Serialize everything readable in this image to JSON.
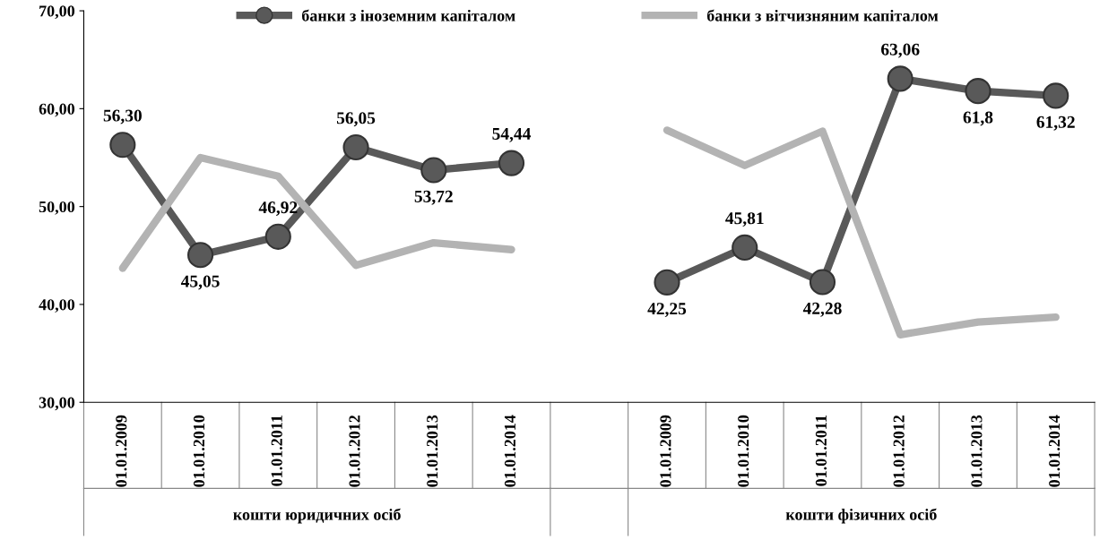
{
  "chart_data": {
    "type": "line",
    "categories": [
      "01.01.2009",
      "01.01.2010",
      "01.01.2011",
      "01.01.2012",
      "01.01.2013",
      "01.01.2014",
      null,
      "01.01.2009",
      "01.01.2010",
      "01.01.2011",
      "01.01.2012",
      "01.01.2013",
      "01.01.2014"
    ],
    "series": [
      {
        "name": "банки з іноземним капіталом",
        "color": "#595959",
        "marker": "circle",
        "values": [
          56.3,
          45.05,
          46.92,
          56.05,
          53.72,
          54.44,
          null,
          42.25,
          45.81,
          42.28,
          63.06,
          61.8,
          61.32
        ],
        "value_labels": [
          "56,30",
          "45,05",
          "46,92",
          "56,05",
          "53,72",
          "54,44",
          null,
          "42,25",
          "45,81",
          "42,28",
          "63,06",
          "61,8",
          "61,32"
        ]
      },
      {
        "name": "банки з вітчизняним капіталом",
        "color": "#b3b3b3",
        "marker": "none",
        "values": [
          43.7,
          55.0,
          53.1,
          44.0,
          46.3,
          45.6,
          null,
          57.8,
          54.2,
          57.7,
          36.9,
          38.2,
          38.7
        ]
      }
    ],
    "ylim": [
      30,
      70
    ],
    "yticks": [
      {
        "value": 30,
        "label": "30,00"
      },
      {
        "value": 40,
        "label": "40,00"
      },
      {
        "value": 50,
        "label": "50,00"
      },
      {
        "value": 60,
        "label": "60,00"
      },
      {
        "value": 70,
        "label": "70,00"
      }
    ],
    "annotations": [
      "кошти юридичних осіб",
      "кошти фізичних осіб"
    ],
    "legend": "top",
    "grid": false
  }
}
